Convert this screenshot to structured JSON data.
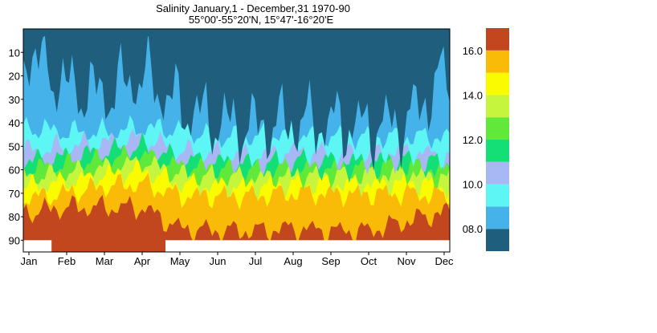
{
  "chart_data": {
    "type": "heatmap",
    "title": "Salinity January,1 - December,31  1970-90",
    "subtitle": "55°00'-55°20'N, 15°47'-16°20'E",
    "x_categories": [
      "Jan",
      "Feb",
      "Mar",
      "Apr",
      "May",
      "Jun",
      "Jul",
      "Aug",
      "Sep",
      "Oct",
      "Nov",
      "Dec"
    ],
    "y_ticks": [
      10,
      20,
      30,
      40,
      50,
      60,
      70,
      80,
      90
    ],
    "y_range": [
      0,
      95
    ],
    "y_inverted": true,
    "colorbar": {
      "tick_labels": [
        "16.0",
        "14.0",
        "12.0",
        "10.0",
        "08.0"
      ],
      "tick_values": [
        16,
        14,
        12,
        10,
        8
      ],
      "levels": [
        {
          "min": 7,
          "max": 8,
          "color": "#1f5f7d"
        },
        {
          "min": 8,
          "max": 9,
          "color": "#45b3ea"
        },
        {
          "min": 9,
          "max": 10,
          "color": "#5ef5f5"
        },
        {
          "min": 10,
          "max": 11,
          "color": "#a7b8f4"
        },
        {
          "min": 11,
          "max": 12,
          "color": "#14df76"
        },
        {
          "min": 12,
          "max": 13,
          "color": "#60e83b"
        },
        {
          "min": 13,
          "max": 14,
          "color": "#c5f53c"
        },
        {
          "min": 14,
          "max": 15,
          "color": "#fbfb00"
        },
        {
          "min": 15,
          "max": 16,
          "color": "#f9bb07"
        },
        {
          "min": 16,
          "max": 17,
          "color": "#c2461e"
        }
      ]
    },
    "isohalines_depth_m_by_month": {
      "month": [
        1,
        2,
        3,
        4,
        5,
        6,
        7,
        8,
        9,
        10,
        11,
        12
      ],
      "8": [
        10,
        25,
        28,
        20,
        33,
        40,
        42,
        40,
        40,
        42,
        40,
        20
      ],
      "9": [
        42,
        44,
        44,
        42,
        43,
        46,
        46,
        44,
        45,
        46,
        46,
        46
      ],
      "10": [
        52,
        50,
        48,
        46,
        52,
        53,
        54,
        52,
        53,
        53,
        52,
        54
      ],
      "11": [
        56,
        54,
        52,
        50,
        55,
        56,
        57,
        56,
        56,
        56,
        55,
        57
      ],
      "12": [
        59,
        57,
        55,
        53,
        58,
        59,
        60,
        59,
        59,
        59,
        58,
        60
      ],
      "13": [
        63,
        61,
        59,
        56,
        62,
        63,
        63,
        62,
        62,
        62,
        61,
        63
      ],
      "14": [
        67,
        65,
        62,
        60,
        66,
        67,
        67,
        66,
        66,
        66,
        65,
        67
      ],
      "15": [
        72,
        70,
        67,
        66,
        71,
        71,
        71,
        70,
        70,
        70,
        70,
        71
      ],
      "16": [
        78,
        76,
        76,
        76,
        85,
        86,
        86,
        85,
        86,
        86,
        82,
        78
      ]
    },
    "no_data_region": {
      "month_start": 1.0,
      "month_end": 1.6,
      "depth_start": 90,
      "depth_end": 95
    },
    "max_depth_after_may": 90
  }
}
